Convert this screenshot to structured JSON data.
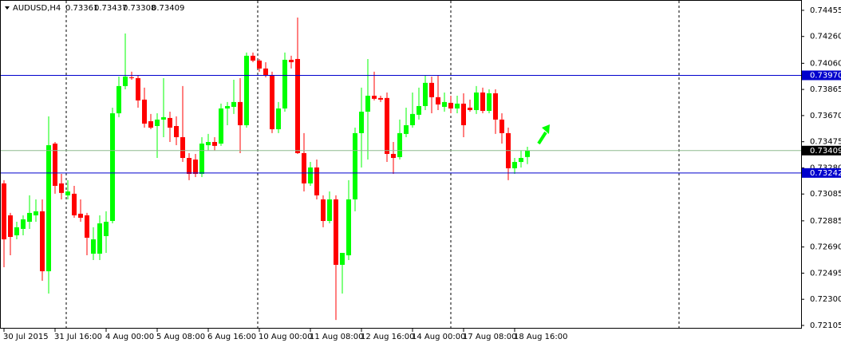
{
  "chart_data": {
    "type": "candlestick",
    "title": "AUDUSD,H4",
    "categories": [
      "30 Jul 2015",
      null,
      null,
      null,
      null,
      null,
      null,
      null,
      "31 Jul 16:00",
      null,
      null,
      null,
      null,
      null,
      null,
      null,
      "4 Aug 00:00",
      null,
      null,
      null,
      null,
      null,
      null,
      null,
      "5 Aug 08:00",
      null,
      null,
      null,
      null,
      null,
      null,
      null,
      "6 Aug 16:00",
      null,
      null,
      null,
      null,
      null,
      null,
      null,
      "10 Aug 00:00",
      null,
      null,
      null,
      null,
      null,
      null,
      null,
      "11 Aug 08:00",
      null,
      null,
      null,
      null,
      null,
      null,
      null,
      "12 Aug 16:00",
      null,
      null,
      null,
      null,
      null,
      null,
      null,
      "14 Aug 00:00",
      null,
      null,
      null,
      null,
      null,
      null,
      null,
      "17 Aug 08:00",
      null,
      null,
      null,
      null,
      null,
      null,
      null,
      "18 Aug 16:00",
      null,
      null
    ],
    "open": [
      0.73164,
      0.72926,
      0.72777,
      0.72825,
      0.72878,
      0.72926,
      0.72956,
      0.72509,
      0.73461,
      0.73164,
      0.73075,
      0.73087,
      0.72938,
      0.72926,
      0.7264,
      0.7264,
      0.72771,
      0.72884,
      0.73687,
      0.7389,
      0.73955,
      0.73949,
      0.73789,
      0.73628,
      0.73592,
      0.7364,
      0.73652,
      0.73592,
      0.73509,
      0.73354,
      0.73342,
      0.73235,
      0.73449,
      0.73473,
      0.73461,
      0.73723,
      0.73735,
      0.73771,
      0.73598,
      0.74116,
      0.7408,
      0.74021,
      0.73973,
      0.73568,
      0.73723,
      0.74086,
      0.74092,
      0.7339,
      0.73164,
      0.73283,
      0.73045,
      0.72884,
      0.73045,
      0.72557,
      0.72628,
      0.73045,
      0.73539,
      0.73699,
      0.73818,
      0.73801,
      0.73801,
      0.73384,
      0.7336,
      0.73533,
      0.73598,
      0.73676,
      0.73741,
      0.73914,
      0.73807,
      0.73735,
      0.73765,
      0.73723,
      0.73759,
      0.73729,
      0.73711,
      0.73842,
      0.73705,
      0.73836,
      0.7364,
      0.73539,
      0.73277,
      0.73324,
      0.73361
    ],
    "high": [
      0.73188,
      0.72944,
      0.72878,
      0.72926,
      0.73075,
      0.73045,
      0.73045,
      0.73664,
      0.73473,
      0.73235,
      0.73188,
      0.73146,
      0.73045,
      0.72944,
      0.72837,
      0.72926,
      0.72956,
      0.73729,
      0.73961,
      0.74282,
      0.73997,
      0.73973,
      0.73878,
      0.73682,
      0.73687,
      0.73949,
      0.73699,
      0.73664,
      0.7389,
      0.7339,
      0.73384,
      0.73509,
      0.73533,
      0.73509,
      0.73759,
      0.73771,
      0.73937,
      0.73949,
      0.7414,
      0.7414,
      0.74092,
      0.74068,
      0.73997,
      0.73771,
      0.7414,
      0.74116,
      0.74401,
      0.73539,
      0.73324,
      0.73342,
      0.73075,
      0.73104,
      0.73075,
      0.72646,
      0.73188,
      0.7358,
      0.73878,
      0.74092,
      0.73997,
      0.73818,
      0.73842,
      0.73473,
      0.7364,
      0.73729,
      0.73842,
      0.73878,
      0.73967,
      0.73961,
      0.73973,
      0.73842,
      0.73818,
      0.73818,
      0.73836,
      0.73789,
      0.7389,
      0.73878,
      0.73866,
      0.73866,
      0.73687,
      0.7358,
      0.73354,
      0.73408,
      0.73437
    ],
    "low": [
      0.72539,
      0.72628,
      0.72747,
      0.72777,
      0.72825,
      0.72878,
      0.72438,
      0.72343,
      0.73087,
      0.73045,
      0.73045,
      0.72908,
      0.72878,
      0.72628,
      0.72593,
      0.72593,
      0.72646,
      0.72866,
      0.73658,
      0.73866,
      0.73937,
      0.73729,
      0.7358,
      0.73568,
      0.73354,
      0.73509,
      0.73473,
      0.73449,
      0.73324,
      0.73188,
      0.73211,
      0.73211,
      0.73408,
      0.73408,
      0.73444,
      0.73598,
      0.73682,
      0.7339,
      0.7358,
      0.74068,
      0.73997,
      0.73955,
      0.73539,
      0.73539,
      0.73699,
      0.74021,
      0.73384,
      0.73104,
      0.73146,
      0.73045,
      0.72837,
      0.72866,
      0.72146,
      0.72343,
      0.72593,
      0.72956,
      0.73283,
      0.73342,
      0.73783,
      0.73771,
      0.73324,
      0.73235,
      0.73342,
      0.73509,
      0.7358,
      0.7364,
      0.73711,
      0.73687,
      0.73711,
      0.73699,
      0.73687,
      0.73687,
      0.73509,
      0.73699,
      0.73682,
      0.73687,
      0.73687,
      0.73533,
      0.73461,
      0.73188,
      0.73235,
      0.73283,
      0.73308
    ],
    "close": [
      0.72747,
      0.72765,
      0.72837,
      0.72896,
      0.72944,
      0.72956,
      0.72509,
      0.73449,
      0.73146,
      0.73093,
      0.73104,
      0.72926,
      0.72908,
      0.72759,
      0.72747,
      0.72866,
      0.72878,
      0.73687,
      0.7389,
      0.73961,
      0.73949,
      0.73783,
      0.7361,
      0.7358,
      0.7364,
      0.73658,
      0.7358,
      0.73509,
      0.73354,
      0.73235,
      0.73235,
      0.73461,
      0.73473,
      0.73444,
      0.73723,
      0.73741,
      0.73771,
      0.73598,
      0.74116,
      0.7408,
      0.74021,
      0.73967,
      0.73568,
      0.73723,
      0.74086,
      0.74068,
      0.7339,
      0.73164,
      0.73283,
      0.73075,
      0.72884,
      0.73045,
      0.72557,
      0.72646,
      0.73045,
      0.73539,
      0.73699,
      0.73818,
      0.73795,
      0.73789,
      0.73384,
      0.73354,
      0.73539,
      0.73598,
      0.73682,
      0.73741,
      0.73914,
      0.73807,
      0.73753,
      0.73771,
      0.73723,
      0.73759,
      0.73598,
      0.73711,
      0.73842,
      0.73705,
      0.73836,
      0.7364,
      0.73539,
      0.73277,
      0.73324,
      0.73354,
      0.73409
    ],
    "up_color": "#00ff00",
    "down_color": "#ff0000",
    "ylim": [
      0.72087,
      0.7452
    ],
    "yticks": [
      {
        "value": 0.74455,
        "label": "0.74455"
      },
      {
        "value": 0.7426,
        "label": "0.74260"
      },
      {
        "value": 0.7406,
        "label": "0.74060"
      },
      {
        "value": 0.73865,
        "label": "0.73865"
      },
      {
        "value": 0.7367,
        "label": "0.73670"
      },
      {
        "value": 0.73475,
        "label": "0.73475"
      },
      {
        "value": 0.7328,
        "label": "0.73280"
      },
      {
        "value": 0.73085,
        "label": "0.73085"
      },
      {
        "value": 0.72885,
        "label": "0.72885"
      },
      {
        "value": 0.7269,
        "label": "0.72690"
      },
      {
        "value": 0.72495,
        "label": "0.72495"
      },
      {
        "value": 0.723,
        "label": "0.72300"
      },
      {
        "value": 0.72105,
        "label": "0.72105"
      }
    ],
    "hlines": [
      {
        "value": 0.7397,
        "label": "0.73970",
        "color": "#0000cd",
        "box_color": "#0000cd"
      },
      {
        "value": 0.73409,
        "color": "#8fbc8f",
        "box_color": "#000000"
      },
      {
        "value": 0.73242,
        "color": "#0000cd",
        "box_color": "#0000cd"
      }
    ]
  }
}
